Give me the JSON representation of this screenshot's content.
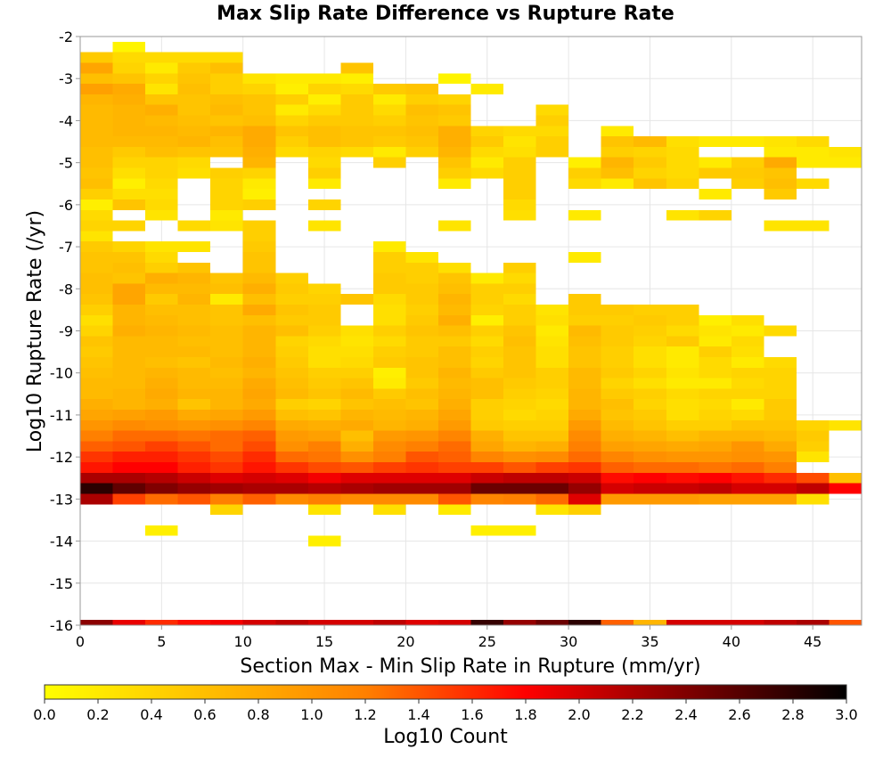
{
  "chart_data": {
    "type": "heatmap",
    "title": "Max Slip Rate Difference vs Rupture Rate",
    "xlabel": "Section Max - Min Slip Rate in Rupture (mm/yr)",
    "ylabel": "Log10 Rupture Rate (/yr)",
    "xlim": [
      0,
      48
    ],
    "ylim": [
      -16,
      -2
    ],
    "x_bin_width": 2,
    "y_bin_width": 0.25,
    "x_ticks": [
      "0",
      "5",
      "10",
      "15",
      "20",
      "25",
      "30",
      "35",
      "40",
      "45"
    ],
    "x_tick_values": [
      0,
      5,
      10,
      15,
      20,
      25,
      30,
      35,
      40,
      45
    ],
    "y_ticks": [
      "-2",
      "-3",
      "-4",
      "-5",
      "-6",
      "-7",
      "-8",
      "-9",
      "-10",
      "-11",
      "-12",
      "-13",
      "-14",
      "-15",
      "-16"
    ],
    "y_tick_values": [
      -2,
      -3,
      -4,
      -5,
      -6,
      -7,
      -8,
      -9,
      -10,
      -11,
      -12,
      -13,
      -14,
      -15,
      -16
    ],
    "grid": true,
    "colorbar": {
      "label": "Log10 Count",
      "min": 0.0,
      "max": 3.0,
      "position": "bottom",
      "tick_labels": [
        "0.0",
        "0.2",
        "0.4",
        "0.6",
        "0.8",
        "1.0",
        "1.2",
        "1.4",
        "1.6",
        "1.8",
        "2.0",
        "2.2",
        "2.4",
        "2.6",
        "2.8",
        "3.0"
      ],
      "colormap": [
        "#ffff00",
        "#ffbf00",
        "#ff8000",
        "#ff0000",
        "#800000",
        "#000000"
      ]
    },
    "rows": {
      "-2.25": {
        "2": 0.1
      },
      "-2.5": {
        "0": 0.5,
        "2": 0.35,
        "4": 0.35,
        "6": 0.35,
        "8": 0.35
      },
      "-2.75": {
        "0": 0.85,
        "2": 0.4,
        "4": 0.2,
        "6": 0.5,
        "8": 0.6,
        "16": 0.55
      },
      "-3.0": {
        "0": 0.6,
        "2": 0.55,
        "4": 0.4,
        "6": 0.55,
        "8": 0.45,
        "10": 0.25,
        "12": 0.2,
        "14": 0.2,
        "16": 0.15,
        "22": 0.1
      },
      "-3.25": {
        "0": 0.9,
        "2": 0.8,
        "4": 0.25,
        "6": 0.6,
        "8": 0.45,
        "10": 0.4,
        "12": 0.15,
        "14": 0.4,
        "16": 0.35,
        "18": 0.5,
        "20": 0.55,
        "24": 0.2
      },
      "-3.5": {
        "0": 0.7,
        "2": 0.75,
        "4": 0.55,
        "6": 0.55,
        "8": 0.6,
        "10": 0.55,
        "12": 0.45,
        "14": 0.15,
        "16": 0.5,
        "18": 0.2,
        "20": 0.45,
        "22": 0.4
      },
      "-3.75": {
        "0": 0.65,
        "2": 0.7,
        "4": 0.75,
        "6": 0.55,
        "8": 0.65,
        "10": 0.55,
        "12": 0.2,
        "14": 0.35,
        "16": 0.5,
        "18": 0.35,
        "20": 0.6,
        "22": 0.55,
        "28": 0.35
      },
      "-4.0": {
        "0": 0.65,
        "2": 0.7,
        "4": 0.65,
        "6": 0.6,
        "8": 0.55,
        "10": 0.6,
        "12": 0.4,
        "14": 0.5,
        "16": 0.5,
        "18": 0.45,
        "20": 0.55,
        "22": 0.5,
        "28": 0.45
      },
      "-4.25": {
        "0": 0.65,
        "2": 0.7,
        "4": 0.7,
        "6": 0.65,
        "8": 0.7,
        "10": 0.8,
        "12": 0.55,
        "14": 0.6,
        "16": 0.55,
        "18": 0.55,
        "20": 0.6,
        "22": 0.75,
        "24": 0.4,
        "26": 0.35,
        "28": 0.35,
        "32": 0.2
      },
      "-4.5": {
        "0": 0.65,
        "2": 0.65,
        "4": 0.65,
        "6": 0.7,
        "8": 0.6,
        "10": 0.8,
        "12": 0.45,
        "14": 0.6,
        "16": 0.55,
        "18": 0.5,
        "20": 0.55,
        "22": 0.75,
        "24": 0.5,
        "26": 0.25,
        "28": 0.45,
        "32": 0.55,
        "34": 0.65,
        "36": 0.3,
        "38": 0.2,
        "40": 0.2,
        "42": 0.25,
        "44": 0.35
      },
      "-4.75": {
        "0": 0.6,
        "2": 0.5,
        "4": 0.6,
        "6": 0.55,
        "8": 0.55,
        "10": 0.75,
        "12": 0.35,
        "14": 0.4,
        "16": 0.35,
        "18": 0.2,
        "20": 0.45,
        "22": 0.7,
        "24": 0.35,
        "26": 0.3,
        "28": 0.45,
        "32": 0.45,
        "34": 0.4,
        "36": 0.35,
        "42": 0.2,
        "44": 0.2,
        "46": 0.25
      },
      "-5.0": {
        "0": 0.6,
        "2": 0.4,
        "4": 0.4,
        "6": 0.35,
        "10": 0.7,
        "14": 0.35,
        "18": 0.45,
        "22": 0.55,
        "24": 0.2,
        "26": 0.45,
        "30": 0.15,
        "32": 0.7,
        "34": 0.5,
        "36": 0.35,
        "38": 0.2,
        "40": 0.45,
        "42": 0.8,
        "44": 0.2,
        "46": 0.2
      },
      "-5.25": {
        "0": 0.55,
        "2": 0.3,
        "4": 0.4,
        "6": 0.3,
        "8": 0.45,
        "10": 0.4,
        "14": 0.45,
        "22": 0.45,
        "24": 0.35,
        "26": 0.45,
        "30": 0.45,
        "32": 0.6,
        "34": 0.4,
        "36": 0.35,
        "38": 0.5,
        "40": 0.5,
        "42": 0.55
      },
      "-5.5": {
        "0": 0.6,
        "2": 0.15,
        "4": 0.35,
        "8": 0.4,
        "10": 0.2,
        "14": 0.2,
        "22": 0.2,
        "26": 0.45,
        "30": 0.35,
        "32": 0.2,
        "34": 0.55,
        "36": 0.4,
        "40": 0.45,
        "42": 0.6,
        "44": 0.35
      },
      "-5.75": {
        "0": 0.45,
        "2": 0.3,
        "4": 0.3,
        "8": 0.4,
        "10": 0.15,
        "26": 0.45,
        "38": 0.2,
        "42": 0.5
      },
      "-6.0": {
        "0": 0.15,
        "2": 0.55,
        "4": 0.35,
        "8": 0.4,
        "10": 0.45,
        "14": 0.4,
        "26": 0.35
      },
      "-6.25": {
        "0": 0.35,
        "4": 0.25,
        "8": 0.2,
        "26": 0.3,
        "30": 0.2,
        "36": 0.25,
        "38": 0.4
      },
      "-6.5": {
        "0": 0.4,
        "2": 0.4,
        "6": 0.35,
        "8": 0.25,
        "10": 0.45,
        "14": 0.25,
        "22": 0.25,
        "42": 0.25,
        "44": 0.25
      },
      "-6.75": {
        "0": 0.25,
        "10": 0.45
      },
      "-7.0": {
        "0": 0.5,
        "2": 0.4,
        "4": 0.25,
        "6": 0.25,
        "10": 0.5,
        "18": 0.2
      },
      "-7.25": {
        "0": 0.55,
        "2": 0.55,
        "4": 0.35,
        "10": 0.55,
        "18": 0.45,
        "20": 0.25,
        "30": 0.2
      },
      "-7.5": {
        "0": 0.55,
        "2": 0.6,
        "4": 0.45,
        "6": 0.55,
        "10": 0.55,
        "18": 0.45,
        "20": 0.45,
        "22": 0.3,
        "26": 0.45
      },
      "-7.75": {
        "0": 0.6,
        "2": 0.55,
        "4": 0.75,
        "6": 0.7,
        "8": 0.55,
        "10": 0.65,
        "12": 0.45,
        "18": 0.5,
        "20": 0.45,
        "22": 0.55,
        "24": 0.2,
        "26": 0.35
      },
      "-8.0": {
        "0": 0.6,
        "2": 0.85,
        "4": 0.65,
        "6": 0.65,
        "8": 0.6,
        "10": 0.75,
        "12": 0.5,
        "14": 0.4,
        "18": 0.5,
        "20": 0.5,
        "22": 0.6,
        "24": 0.45,
        "26": 0.45
      },
      "-8.25": {
        "0": 0.55,
        "2": 0.85,
        "4": 0.5,
        "6": 0.7,
        "8": 0.2,
        "10": 0.6,
        "12": 0.45,
        "14": 0.45,
        "16": 0.55,
        "18": 0.35,
        "20": 0.5,
        "22": 0.7,
        "24": 0.45,
        "26": 0.35,
        "30": 0.5
      },
      "-8.5": {
        "0": 0.45,
        "2": 0.7,
        "4": 0.6,
        "6": 0.6,
        "8": 0.55,
        "10": 0.8,
        "12": 0.55,
        "14": 0.5,
        "18": 0.3,
        "20": 0.45,
        "22": 0.65,
        "24": 0.4,
        "26": 0.45,
        "28": 0.25,
        "30": 0.5,
        "32": 0.5,
        "34": 0.45,
        "36": 0.45
      },
      "-8.75": {
        "0": 0.3,
        "2": 0.7,
        "4": 0.65,
        "6": 0.6,
        "8": 0.55,
        "10": 0.6,
        "12": 0.5,
        "14": 0.5,
        "18": 0.3,
        "20": 0.5,
        "22": 0.75,
        "24": 0.15,
        "26": 0.45,
        "28": 0.3,
        "30": 0.45,
        "32": 0.45,
        "34": 0.5,
        "36": 0.45,
        "38": 0.15,
        "40": 0.3
      },
      "-9.0": {
        "0": 0.4,
        "2": 0.75,
        "4": 0.7,
        "6": 0.65,
        "8": 0.6,
        "10": 0.7,
        "12": 0.6,
        "14": 0.45,
        "16": 0.3,
        "18": 0.45,
        "20": 0.55,
        "22": 0.6,
        "24": 0.45,
        "26": 0.55,
        "28": 0.2,
        "30": 0.65,
        "32": 0.5,
        "34": 0.45,
        "36": 0.35,
        "38": 0.25,
        "40": 0.2,
        "42": 0.35
      },
      "-9.25": {
        "0": 0.55,
        "2": 0.65,
        "4": 0.65,
        "6": 0.6,
        "8": 0.6,
        "10": 0.7,
        "12": 0.4,
        "14": 0.35,
        "16": 0.25,
        "18": 0.35,
        "20": 0.5,
        "22": 0.5,
        "24": 0.35,
        "26": 0.6,
        "28": 0.25,
        "30": 0.6,
        "32": 0.5,
        "34": 0.4,
        "36": 0.5,
        "38": 0.2,
        "40": 0.35
      },
      "-9.5": {
        "0": 0.5,
        "2": 0.65,
        "4": 0.65,
        "6": 0.65,
        "8": 0.6,
        "10": 0.7,
        "12": 0.45,
        "14": 0.3,
        "16": 0.3,
        "18": 0.45,
        "20": 0.5,
        "22": 0.6,
        "24": 0.45,
        "26": 0.55,
        "28": 0.3,
        "30": 0.55,
        "32": 0.45,
        "34": 0.3,
        "36": 0.2,
        "38": 0.45,
        "40": 0.3
      },
      "-9.75": {
        "0": 0.55,
        "2": 0.65,
        "4": 0.6,
        "6": 0.55,
        "8": 0.65,
        "10": 0.75,
        "12": 0.5,
        "14": 0.3,
        "16": 0.35,
        "18": 0.5,
        "20": 0.55,
        "22": 0.6,
        "24": 0.4,
        "26": 0.55,
        "28": 0.3,
        "30": 0.55,
        "32": 0.45,
        "34": 0.3,
        "36": 0.2,
        "38": 0.35,
        "40": 0.2,
        "42": 0.35
      },
      "-10.0": {
        "0": 0.6,
        "2": 0.65,
        "4": 0.7,
        "6": 0.65,
        "8": 0.6,
        "10": 0.7,
        "12": 0.55,
        "14": 0.45,
        "16": 0.45,
        "18": 0.15,
        "20": 0.55,
        "22": 0.7,
        "24": 0.5,
        "26": 0.55,
        "28": 0.45,
        "30": 0.65,
        "32": 0.5,
        "34": 0.4,
        "36": 0.25,
        "38": 0.35,
        "40": 0.4,
        "42": 0.4
      },
      "-10.25": {
        "0": 0.65,
        "2": 0.65,
        "4": 0.75,
        "6": 0.65,
        "8": 0.65,
        "10": 0.8,
        "12": 0.6,
        "14": 0.5,
        "16": 0.55,
        "18": 0.2,
        "20": 0.5,
        "22": 0.65,
        "24": 0.6,
        "26": 0.5,
        "28": 0.45,
        "30": 0.65,
        "32": 0.4,
        "34": 0.3,
        "36": 0.2,
        "38": 0.2,
        "40": 0.35,
        "42": 0.4
      },
      "-10.5": {
        "0": 0.65,
        "2": 0.7,
        "4": 0.8,
        "6": 0.7,
        "8": 0.7,
        "10": 0.85,
        "12": 0.65,
        "14": 0.55,
        "16": 0.65,
        "18": 0.5,
        "20": 0.6,
        "22": 0.7,
        "24": 0.6,
        "26": 0.45,
        "28": 0.4,
        "30": 0.7,
        "32": 0.5,
        "34": 0.45,
        "36": 0.35,
        "38": 0.4,
        "40": 0.4,
        "42": 0.4
      },
      "-10.75": {
        "0": 0.75,
        "2": 0.7,
        "4": 0.75,
        "6": 0.55,
        "8": 0.7,
        "10": 0.8,
        "12": 0.45,
        "14": 0.4,
        "16": 0.55,
        "18": 0.6,
        "20": 0.55,
        "22": 0.75,
        "24": 0.45,
        "26": 0.4,
        "28": 0.35,
        "30": 0.7,
        "32": 0.6,
        "34": 0.4,
        "36": 0.3,
        "38": 0.35,
        "40": 0.2,
        "42": 0.5
      },
      "-11.0": {
        "0": 0.85,
        "2": 0.9,
        "4": 0.95,
        "6": 0.8,
        "8": 0.85,
        "10": 0.95,
        "12": 0.6,
        "14": 0.55,
        "16": 0.7,
        "18": 0.65,
        "20": 0.7,
        "22": 0.85,
        "24": 0.45,
        "26": 0.35,
        "28": 0.4,
        "30": 0.8,
        "32": 0.55,
        "34": 0.5,
        "36": 0.3,
        "38": 0.4,
        "40": 0.35,
        "42": 0.5
      },
      "-11.25": {
        "0": 1.0,
        "2": 1.1,
        "4": 1.05,
        "6": 1.0,
        "8": 1.05,
        "10": 1.15,
        "12": 0.8,
        "14": 0.75,
        "16": 0.8,
        "18": 0.7,
        "20": 0.75,
        "22": 0.95,
        "24": 0.5,
        "26": 0.45,
        "28": 0.45,
        "30": 0.95,
        "32": 0.65,
        "34": 0.55,
        "36": 0.45,
        "38": 0.45,
        "40": 0.55,
        "42": 0.55,
        "44": 0.4,
        "46": 0.25
      },
      "-11.5": {
        "0": 1.2,
        "2": 1.3,
        "4": 1.3,
        "6": 1.25,
        "8": 1.3,
        "10": 1.35,
        "12": 0.95,
        "14": 0.9,
        "16": 0.6,
        "18": 0.95,
        "20": 1.0,
        "22": 1.15,
        "24": 0.75,
        "26": 0.55,
        "28": 0.55,
        "30": 1.1,
        "32": 0.75,
        "34": 0.7,
        "36": 0.6,
        "38": 0.7,
        "40": 0.7,
        "42": 0.65,
        "44": 0.5
      },
      "-11.75": {
        "0": 1.35,
        "2": 1.4,
        "4": 1.5,
        "6": 1.4,
        "8": 1.3,
        "10": 1.45,
        "12": 1.05,
        "14": 1.2,
        "16": 0.75,
        "18": 1.1,
        "20": 1.2,
        "22": 1.3,
        "24": 0.85,
        "26": 0.7,
        "28": 0.75,
        "30": 1.2,
        "32": 0.9,
        "34": 0.85,
        "36": 0.8,
        "38": 0.85,
        "40": 1.0,
        "42": 0.8,
        "44": 0.45
      },
      "-12.0": {
        "0": 1.55,
        "2": 1.65,
        "4": 1.65,
        "6": 1.55,
        "8": 1.45,
        "10": 1.6,
        "12": 1.3,
        "14": 1.25,
        "16": 1.05,
        "18": 1.2,
        "20": 1.4,
        "22": 1.35,
        "24": 1.15,
        "26": 1.05,
        "28": 1.1,
        "30": 1.3,
        "32": 1.15,
        "34": 1.05,
        "36": 1.0,
        "38": 1.0,
        "40": 1.05,
        "42": 1.0,
        "44": 0.25
      },
      "-12.25": {
        "0": 1.7,
        "2": 1.8,
        "4": 1.8,
        "6": 1.65,
        "8": 1.55,
        "10": 1.7,
        "12": 1.55,
        "14": 1.45,
        "16": 1.4,
        "18": 1.5,
        "20": 1.55,
        "22": 1.5,
        "24": 1.5,
        "26": 1.4,
        "28": 1.5,
        "30": 1.55,
        "32": 1.35,
        "34": 1.3,
        "36": 1.3,
        "38": 1.25,
        "40": 1.3,
        "42": 1.2
      },
      "-12.5": {
        "0": 2.2,
        "2": 2.2,
        "4": 2.15,
        "6": 2.05,
        "8": 1.95,
        "10": 2.0,
        "12": 1.95,
        "14": 1.85,
        "16": 1.95,
        "18": 1.95,
        "20": 1.95,
        "22": 1.95,
        "24": 2.05,
        "26": 2.1,
        "28": 2.1,
        "30": 2.05,
        "32": 1.75,
        "34": 1.8,
        "36": 1.75,
        "38": 1.8,
        "40": 1.7,
        "42": 1.6,
        "44": 1.45,
        "46": 0.6
      },
      "-12.75": {
        "0": 2.8,
        "2": 2.55,
        "4": 2.4,
        "6": 2.3,
        "8": 2.25,
        "10": 2.2,
        "12": 2.2,
        "14": 2.15,
        "16": 2.2,
        "18": 2.25,
        "20": 2.25,
        "22": 2.25,
        "24": 2.5,
        "26": 2.5,
        "28": 2.5,
        "30": 2.3,
        "32": 2.0,
        "34": 2.05,
        "36": 2.05,
        "38": 2.1,
        "40": 2.0,
        "42": 2.0,
        "44": 2.1,
        "46": 1.8
      },
      "-13.0": {
        "0": 2.2,
        "2": 1.5,
        "4": 1.3,
        "6": 1.4,
        "8": 1.2,
        "10": 1.35,
        "12": 1.1,
        "14": 1.2,
        "16": 1.1,
        "18": 1.1,
        "20": 1.1,
        "22": 1.4,
        "24": 1.15,
        "26": 1.2,
        "28": 1.3,
        "30": 1.95,
        "32": 0.95,
        "34": 0.95,
        "36": 0.95,
        "38": 0.9,
        "40": 0.9,
        "42": 0.9,
        "44": 0.3
      },
      "-13.25": {
        "8": 0.4,
        "14": 0.25,
        "18": 0.3,
        "22": 0.2,
        "28": 0.25,
        "30": 0.45
      },
      "-13.75": {
        "4": 0.15,
        "24": 0.15,
        "26": 0.15
      },
      "-14.0": {
        "14": 0.15
      },
      "-16.0": {
        "0": 2.35,
        "2": 1.9,
        "4": 1.6,
        "6": 1.75,
        "8": 1.85,
        "10": 2.0,
        "12": 2.1,
        "14": 2.0,
        "16": 2.0,
        "18": 2.1,
        "20": 1.95,
        "22": 2.0,
        "24": 2.75,
        "26": 2.3,
        "28": 2.5,
        "30": 2.8,
        "32": 1.35,
        "34": 0.7,
        "36": 2.0,
        "38": 2.0,
        "40": 2.0,
        "42": 2.1,
        "44": 2.2,
        "46": 1.4
      }
    }
  }
}
